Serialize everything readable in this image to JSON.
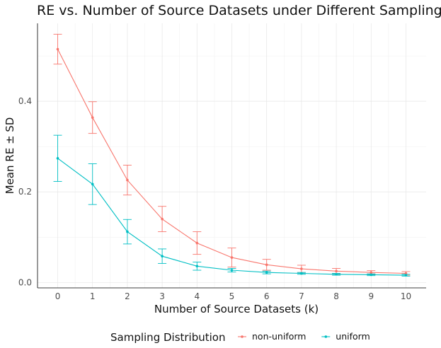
{
  "chart_data": {
    "type": "line",
    "title": "RE vs. Number of Source Datasets under Different Sampling",
    "xlabel": "Number of Source Datasets (k)",
    "ylabel": "Mean RE ± SD",
    "x": [
      0,
      1,
      2,
      3,
      4,
      5,
      6,
      7,
      8,
      9,
      10
    ],
    "x_tick_labels": [
      "0",
      "1",
      "2",
      "3",
      "4",
      "5",
      "6",
      "7",
      "8",
      "9",
      "10"
    ],
    "y_ticks": [
      0.0,
      0.2,
      0.4
    ],
    "y_tick_labels": [
      "0.0",
      "0.2",
      "0.4"
    ],
    "xlim": [
      -0.58,
      10.58
    ],
    "ylim": [
      -0.012,
      0.572
    ],
    "grid": true,
    "error_bars": "± SD",
    "legend": {
      "title": "Sampling Distribution",
      "position": "bottom"
    },
    "series": [
      {
        "name": "non-uniform",
        "color": "#F8766D",
        "values": [
          0.515,
          0.364,
          0.226,
          0.14,
          0.087,
          0.055,
          0.039,
          0.03,
          0.025,
          0.022,
          0.02
        ],
        "sd": [
          0.033,
          0.035,
          0.033,
          0.028,
          0.025,
          0.021,
          0.012,
          0.008,
          0.006,
          0.004,
          0.004
        ]
      },
      {
        "name": "uniform",
        "color": "#00BFC4",
        "values": [
          0.274,
          0.217,
          0.112,
          0.058,
          0.036,
          0.027,
          0.022,
          0.02,
          0.018,
          0.017,
          0.016
        ],
        "sd": [
          0.051,
          0.045,
          0.027,
          0.016,
          0.009,
          0.004,
          0.003,
          0.002,
          0.002,
          0.002,
          0.002
        ]
      }
    ]
  }
}
